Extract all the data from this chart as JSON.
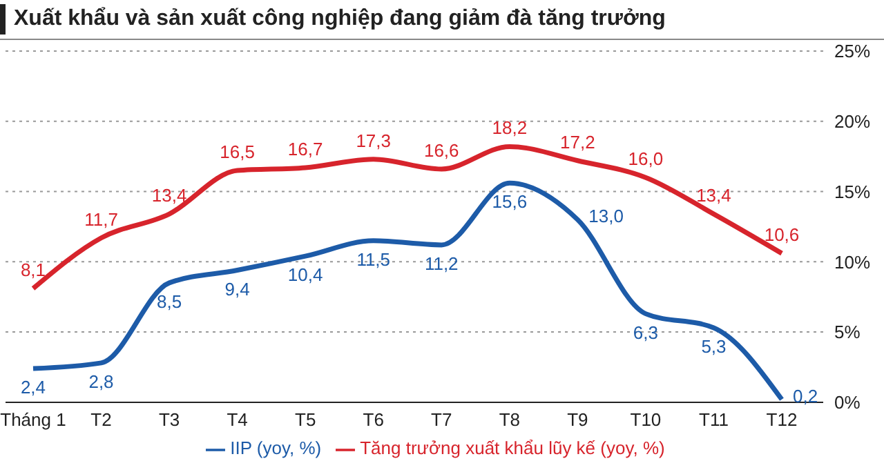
{
  "chart_data": {
    "type": "line",
    "title": "Xuất khẩu và sản xuất công nghiệp đang giảm đà tăng trưởng",
    "categories": [
      "Tháng 1",
      "T2",
      "T3",
      "T4",
      "T5",
      "T6",
      "T7",
      "T8",
      "T9",
      "T10",
      "T11",
      "T12"
    ],
    "series": [
      {
        "name": "IIP (yoy, %)",
        "color": "#1d5ba8",
        "values": [
          2.4,
          2.8,
          8.5,
          9.4,
          10.4,
          11.5,
          11.2,
          15.6,
          13.0,
          6.3,
          5.3,
          0.2
        ],
        "value_labels": [
          "2,4",
          "2,8",
          "8,5",
          "9,4",
          "10,4",
          "11,5",
          "11,2",
          "15,6",
          "13,0",
          "6,3",
          "5,3",
          "0,2"
        ]
      },
      {
        "name": "Tăng trưởng xuất khẩu lũy kế (yoy, %)",
        "color": "#d7242c",
        "values": [
          8.1,
          11.7,
          13.4,
          16.5,
          16.7,
          17.3,
          16.6,
          18.2,
          17.2,
          16.0,
          13.4,
          10.6
        ],
        "value_labels": [
          "8,1",
          "11,7",
          "13,4",
          "16,5",
          "16,7",
          "17,3",
          "16,6",
          "18,2",
          "17,2",
          "16,0",
          "13,4",
          "10,6"
        ]
      }
    ],
    "ylim": [
      0,
      25
    ],
    "yticks": [
      {
        "value": 0,
        "label": "0%"
      },
      {
        "value": 5,
        "label": "5%"
      },
      {
        "value": 10,
        "label": "10%"
      },
      {
        "value": 15,
        "label": "15%"
      },
      {
        "value": 20,
        "label": "20%"
      },
      {
        "value": 25,
        "label": "25%"
      }
    ],
    "grid": "y",
    "legend": "bottom",
    "marker": "none",
    "line_style": "solid"
  }
}
